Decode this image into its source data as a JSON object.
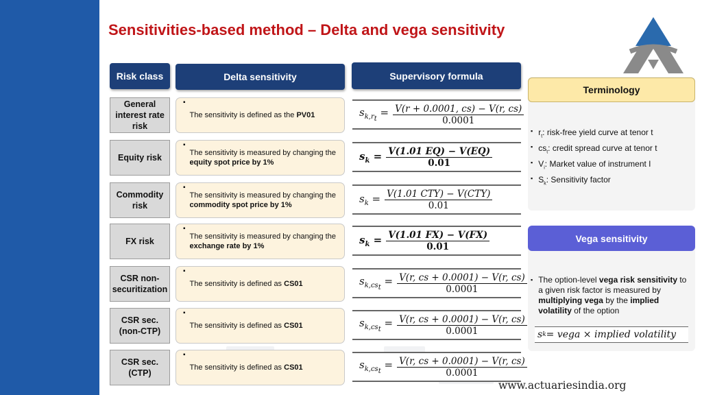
{
  "title": "Sensitivities-based method – Delta and vega sensitivity",
  "colors": {
    "title": "#c01518",
    "header": "#1d3f78",
    "terminology_header": "#fde9a8",
    "vega_header": "#5b5fd6",
    "risk_cell": "#d9d9d9",
    "desc_cell": "#fdf3de"
  },
  "headers": {
    "risk_class": "Risk class",
    "delta": "Delta sensitivity",
    "formula": "Supervisory formula"
  },
  "bullet": "▪",
  "rows": [
    {
      "risk": "General interest rate risk",
      "desc_pre": "The sensitivity is defined as the ",
      "desc_bold": "PV01",
      "lhs": "s",
      "lhs_sub": "k,r",
      "lhs_subsub": "t",
      "num": "V",
      "num_text": "V(r + 0.0001, cs) − V(r, cs)",
      "den": "0.0001"
    },
    {
      "risk": "Equity risk",
      "desc_pre": "The sensitivity is measured by changing the ",
      "desc_bold": "equity spot price by 1%",
      "lhs": "s",
      "lhs_sub": "k",
      "lhs_subsub": "",
      "num_text": "V(1.01 EQ) − V(EQ)",
      "den": "0.01"
    },
    {
      "risk": "Commodity risk",
      "desc_pre": "The sensitivity is measured by changing the ",
      "desc_bold": "commodity spot price by 1%",
      "lhs": "s",
      "lhs_sub": "k",
      "lhs_subsub": "",
      "num_text": "V(1.01 CTY) − V(CTY)",
      "den": "0.01"
    },
    {
      "risk": "FX risk",
      "desc_pre": "The sensitivity is measured by changing the ",
      "desc_bold": "exchange rate by 1%",
      "lhs": "s",
      "lhs_sub": "k",
      "lhs_subsub": "",
      "num_text": "V(1.01 FX) − V(FX)",
      "den": "0.01"
    },
    {
      "risk": "CSR non-securitization",
      "desc_pre": "The sensitivity is defined as ",
      "desc_bold": "CS01",
      "lhs": "s",
      "lhs_sub": "k,cs",
      "lhs_subsub": "t",
      "num_text": "V(r, cs + 0.0001) − V(r, cs)",
      "den": "0.0001"
    },
    {
      "risk": "CSR sec. (non-CTP)",
      "desc_pre": "The sensitivity is defined as ",
      "desc_bold": "CS01",
      "lhs": "s",
      "lhs_sub": "k,cs",
      "lhs_subsub": "t",
      "num_text": "V(r, cs + 0.0001) − V(r, cs)",
      "den": "0.0001"
    },
    {
      "risk": "CSR sec. (CTP)",
      "desc_pre": "The sensitivity is defined as ",
      "desc_bold": "CS01",
      "lhs": "s",
      "lhs_sub": "k,cs",
      "lhs_subsub": "t",
      "num_text": "V(r, cs + 0.0001) − V(r, cs)",
      "den": "0.0001"
    }
  ],
  "terminology": {
    "title": "Terminology",
    "items": [
      {
        "sym": "r",
        "sub": "t",
        "text": ": risk-free yield curve at tenor t"
      },
      {
        "sym": "cs",
        "sub": "t",
        "text": ": credit spread curve at tenor t"
      },
      {
        "sym": "V",
        "sub": "i",
        "text": ": Market value of instrument I"
      },
      {
        "sym": "S",
        "sub": "k",
        "text": ": Sensitivity factor"
      }
    ]
  },
  "vega": {
    "title": "Vega sensitivity",
    "t1": "The option-level ",
    "b1": "vega risk sensitivity",
    "t2": " to a given risk factor is measured by ",
    "b2": "multiplying vega",
    "t3": " by the ",
    "b3": "implied volatility",
    "t4": " of the option",
    "formula_lhs": "s",
    "formula_sub": "k",
    "formula_rhs": " = vega × implied volatility"
  },
  "footer": "www.actuariesindia.org"
}
